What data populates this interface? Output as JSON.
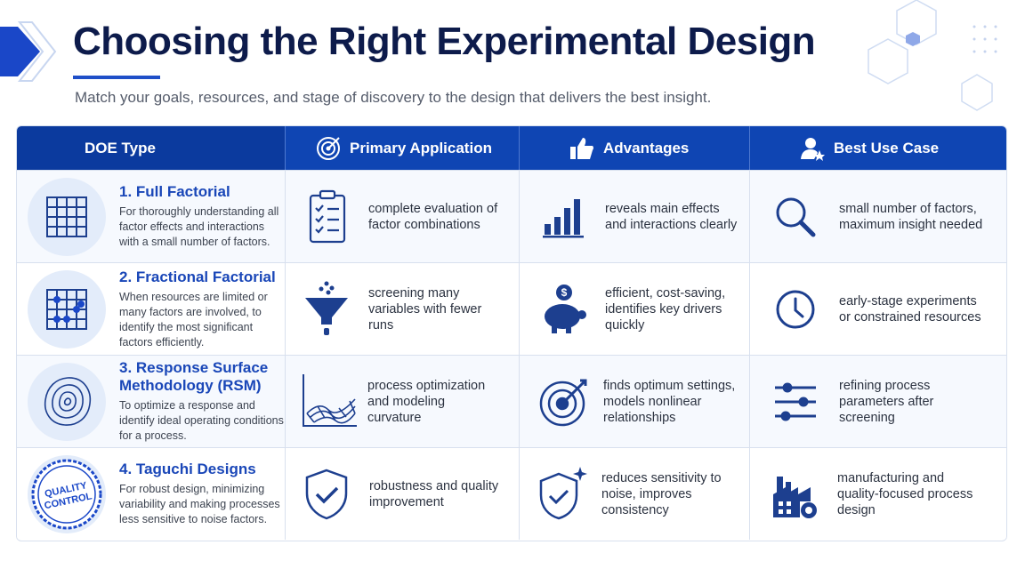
{
  "header": {
    "title": "Choosing the Right Experimental Design",
    "subtitle": "Match your goals, resources, and stage of discovery to the design that delivers the best insight."
  },
  "table": {
    "columns": [
      "DOE Type",
      "Primary Application",
      "Advantages",
      "Best Use Case"
    ],
    "rows": [
      {
        "title": "1. Full Factorial",
        "description": "For thoroughly understanding all factor effects and interactions with a small number of factors.",
        "application": "complete evaluation of factor combinations",
        "advantages": "reveals main effects and interactions clearly",
        "best_use": "small number of factors, maximum insight needed"
      },
      {
        "title": "2. Fractional Factorial",
        "description": "When resources are limited or many factors are involved, to identify the most significant factors efficiently.",
        "application": "screening many variables with fewer runs",
        "advantages": "efficient, cost-saving, identifies key drivers quickly",
        "best_use": "early-stage experiments or constrained resources"
      },
      {
        "title": "3. Response Surface Methodology (RSM)",
        "description": "To optimize a response and identify ideal operating conditions for a process.",
        "application": "process optimization and modeling curvature",
        "advantages": "finds optimum settings, models nonlinear relationships",
        "best_use": "refining process parameters after screening"
      },
      {
        "title": "4. Taguchi Designs",
        "icon_text": "QUALITY CONTROL",
        "description": "For robust design, minimizing variability and making processes less sensitive to noise factors.",
        "application": "robustness and quality improvement",
        "advantages": "reduces sensitivity to noise, improves consistency",
        "best_use": "manufacturing and quality-focused process design"
      }
    ]
  }
}
